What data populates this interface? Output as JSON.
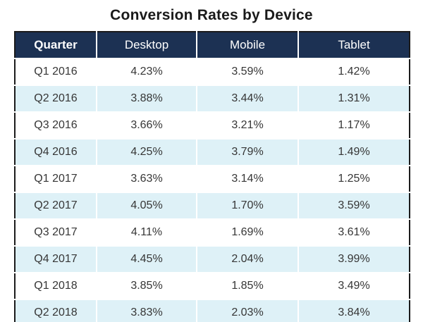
{
  "title": "Conversion Rates by Device",
  "table": {
    "columns": [
      "Quarter",
      "Desktop",
      "Mobile",
      "Tablet"
    ],
    "rows": [
      [
        "Q1 2016",
        "4.23%",
        "3.59%",
        "1.42%"
      ],
      [
        "Q2 2016",
        "3.88%",
        "3.44%",
        "1.31%"
      ],
      [
        "Q3 2016",
        "3.66%",
        "3.21%",
        "1.17%"
      ],
      [
        "Q4 2016",
        "4.25%",
        "3.79%",
        "1.49%"
      ],
      [
        "Q1 2017",
        "3.63%",
        "3.14%",
        "1.25%"
      ],
      [
        "Q2 2017",
        "4.05%",
        "1.70%",
        "3.59%"
      ],
      [
        "Q3 2017",
        "4.11%",
        "1.69%",
        "3.61%"
      ],
      [
        "Q4 2017",
        "4.45%",
        "2.04%",
        "3.99%"
      ],
      [
        "Q1 2018",
        "3.85%",
        "1.85%",
        "3.49%"
      ],
      [
        "Q2 2018",
        "3.83%",
        "2.03%",
        "3.84%"
      ]
    ]
  },
  "chart_data": {
    "type": "table",
    "title": "Conversion Rates by Device",
    "categories": [
      "Q1 2016",
      "Q2 2016",
      "Q3 2016",
      "Q4 2016",
      "Q1 2017",
      "Q2 2017",
      "Q3 2017",
      "Q4 2017",
      "Q1 2018",
      "Q2 2018"
    ],
    "series": [
      {
        "name": "Desktop",
        "values": [
          4.23,
          3.88,
          3.66,
          4.25,
          3.63,
          4.05,
          4.11,
          4.45,
          3.85,
          3.83
        ]
      },
      {
        "name": "Mobile",
        "values": [
          3.59,
          3.44,
          3.21,
          3.79,
          3.14,
          1.7,
          1.69,
          2.04,
          1.85,
          2.03
        ]
      },
      {
        "name": "Tablet",
        "values": [
          1.42,
          1.31,
          1.17,
          1.49,
          1.25,
          3.59,
          3.61,
          3.99,
          3.49,
          3.84
        ]
      }
    ],
    "unit": "%"
  },
  "colors": {
    "header_background": "#1c3153",
    "header_text": "#ffffff",
    "stripe_row_background": "#def1f7",
    "plain_row_background": "#ffffff",
    "body_text": "#363636",
    "outer_border": "#1b1b1b",
    "cell_separator": "#ffffff"
  }
}
